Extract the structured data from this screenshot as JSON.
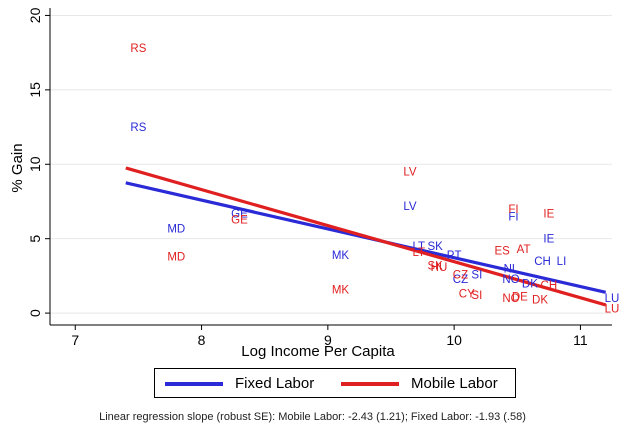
{
  "chart_data": {
    "type": "scatter",
    "xlabel": "Log Income Per Capita",
    "ylabel": "% Gain",
    "xlim": [
      6.8,
      11.25
    ],
    "ylim": [
      -0.8,
      20.5
    ],
    "xticks": [
      7,
      8,
      9,
      10,
      11
    ],
    "yticks": [
      0,
      5,
      10,
      15,
      20
    ],
    "grid": "horizontal",
    "legend_position": "bottom",
    "series": [
      {
        "name": "Fixed Labor",
        "color": "#2a2ad6",
        "points": [
          {
            "label": "RS",
            "x": 7.5,
            "y": 12.5
          },
          {
            "label": "MD",
            "x": 7.8,
            "y": 5.7
          },
          {
            "label": "GE",
            "x": 8.3,
            "y": 6.7
          },
          {
            "label": "MK",
            "x": 9.1,
            "y": 3.9
          },
          {
            "label": "LV",
            "x": 9.65,
            "y": 7.2
          },
          {
            "label": "LT",
            "x": 9.72,
            "y": 4.5
          },
          {
            "label": "SK",
            "x": 9.85,
            "y": 4.5
          },
          {
            "label": "PT",
            "x": 10.0,
            "y": 3.9
          },
          {
            "label": "CZ",
            "x": 10.05,
            "y": 2.3
          },
          {
            "label": "SI",
            "x": 10.18,
            "y": 2.6
          },
          {
            "label": "FI",
            "x": 10.47,
            "y": 6.5
          },
          {
            "label": "IE",
            "x": 10.75,
            "y": 5.0
          },
          {
            "label": "CH",
            "x": 10.7,
            "y": 3.5
          },
          {
            "label": "LI",
            "x": 10.85,
            "y": 3.5
          },
          {
            "label": "NO",
            "x": 10.45,
            "y": 2.3
          },
          {
            "label": "DK",
            "x": 10.6,
            "y": 2.0
          },
          {
            "label": "NL",
            "x": 10.45,
            "y": 3.0
          },
          {
            "label": "LU",
            "x": 11.25,
            "y": 1.0
          }
        ],
        "fit": {
          "x": [
            7.4,
            11.2
          ],
          "y": [
            8.75,
            1.4
          ]
        }
      },
      {
        "name": "Mobile Labor",
        "color": "#e02020",
        "points": [
          {
            "label": "RS",
            "x": 7.5,
            "y": 17.8
          },
          {
            "label": "MD",
            "x": 7.8,
            "y": 3.8
          },
          {
            "label": "GE",
            "x": 8.3,
            "y": 6.3
          },
          {
            "label": "MK",
            "x": 9.1,
            "y": 1.6
          },
          {
            "label": "LV",
            "x": 9.65,
            "y": 9.5
          },
          {
            "label": "LT",
            "x": 9.72,
            "y": 4.1
          },
          {
            "label": "SK",
            "x": 9.85,
            "y": 3.2
          },
          {
            "label": "HU",
            "x": 9.88,
            "y": 3.1
          },
          {
            "label": "CZ",
            "x": 10.05,
            "y": 2.6
          },
          {
            "label": "CY",
            "x": 10.1,
            "y": 1.3
          },
          {
            "label": "SI",
            "x": 10.18,
            "y": 1.2
          },
          {
            "label": "ES",
            "x": 10.38,
            "y": 4.2
          },
          {
            "label": "AT",
            "x": 10.55,
            "y": 4.3
          },
          {
            "label": "FI",
            "x": 10.47,
            "y": 7.0
          },
          {
            "label": "IE",
            "x": 10.75,
            "y": 6.7
          },
          {
            "label": "NO",
            "x": 10.45,
            "y": 1.0
          },
          {
            "label": "DE",
            "x": 10.52,
            "y": 1.1
          },
          {
            "label": "DK",
            "x": 10.68,
            "y": 0.9
          },
          {
            "label": "CH",
            "x": 10.75,
            "y": 1.9
          },
          {
            "label": "LU",
            "x": 11.25,
            "y": 0.3
          }
        ],
        "fit": {
          "x": [
            7.4,
            11.2
          ],
          "y": [
            9.75,
            0.55
          ]
        }
      }
    ]
  },
  "legend": {
    "fixed_label": "Fixed Labor",
    "mobile_label": "Mobile Labor"
  },
  "note": "Linear regression slope (robust SE): Mobile Labor: -2.43 (1.21); Fixed Labor: -1.93 (.58)"
}
